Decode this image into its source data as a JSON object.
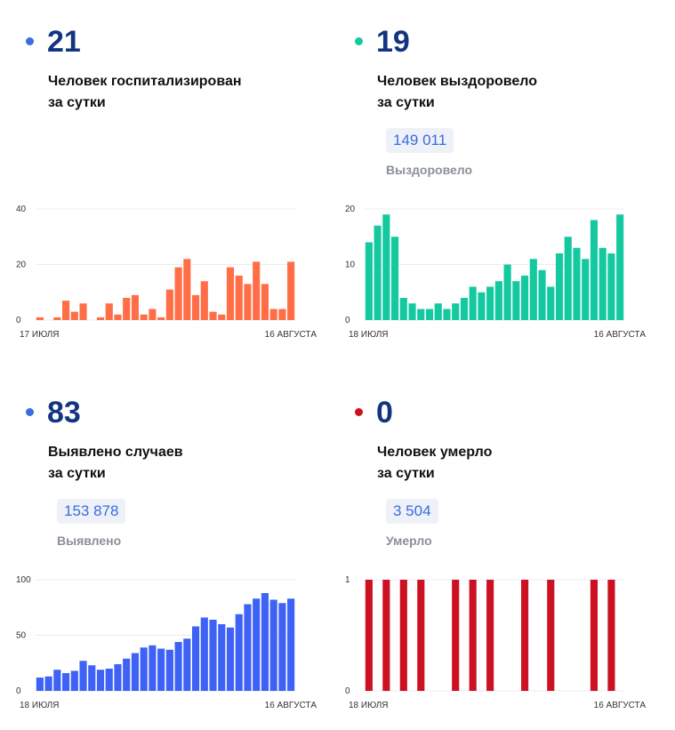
{
  "panels": [
    {
      "id": "hospitalized",
      "value": "21",
      "label_line1": "Человек госпитализирован",
      "label_line2": "за сутки",
      "dot_color": "#3a6be0",
      "total": null,
      "total_label": null
    },
    {
      "id": "recovered",
      "value": "19",
      "label_line1": "Человек выздоровело",
      "label_line2": "за сутки",
      "dot_color": "#14c9a0",
      "total": "149 011",
      "total_label": "Выздоровело"
    },
    {
      "id": "cases",
      "value": "83",
      "label_line1": "Выявлено случаев",
      "label_line2": "за сутки",
      "dot_color": "#3a6be0",
      "total": "153 878",
      "total_label": "Выявлено"
    },
    {
      "id": "deaths",
      "value": "0",
      "label_line1": "Человек умерло",
      "label_line2": "за сутки",
      "dot_color": "#cc1122",
      "total": "3 504",
      "total_label": "Умерло"
    }
  ],
  "chart_data": [
    {
      "type": "bar",
      "color": "#ff6e47",
      "x_start_label": "17 ИЮЛЯ",
      "x_end_label": "16 АВГУСТА",
      "yticks": [
        0,
        20,
        40
      ],
      "ylim": [
        0,
        40
      ],
      "values": [
        1,
        0,
        1,
        7,
        3,
        6,
        0,
        1,
        6,
        2,
        8,
        9,
        2,
        4,
        1,
        11,
        19,
        22,
        9,
        14,
        3,
        2,
        19,
        16,
        13,
        21,
        13,
        4,
        4,
        21
      ]
    },
    {
      "type": "bar",
      "color": "#14c9a0",
      "x_start_label": "18 ИЮЛЯ",
      "x_end_label": "16 АВГУСТА",
      "yticks": [
        0,
        10,
        20
      ],
      "ylim": [
        0,
        20
      ],
      "values": [
        14,
        17,
        19,
        15,
        4,
        3,
        2,
        2,
        3,
        2,
        3,
        4,
        6,
        5,
        6,
        7,
        10,
        7,
        8,
        11,
        9,
        6,
        12,
        15,
        13,
        11,
        18,
        13,
        12,
        19
      ]
    },
    {
      "type": "bar",
      "color": "#3d62f5",
      "x_start_label": "18 ИЮЛЯ",
      "x_end_label": "16 АВГУСТА",
      "yticks": [
        0,
        50,
        100
      ],
      "ylim": [
        0,
        100
      ],
      "values": [
        12,
        13,
        19,
        16,
        18,
        27,
        23,
        19,
        20,
        24,
        29,
        34,
        39,
        41,
        38,
        37,
        44,
        47,
        58,
        66,
        64,
        60,
        57,
        69,
        78,
        83,
        88,
        82,
        79,
        83
      ]
    },
    {
      "type": "bar",
      "color": "#cc1122",
      "x_start_label": "18 ИЮЛЯ",
      "x_end_label": "16 АВГУСТА",
      "yticks": [
        0,
        1
      ],
      "ylim": [
        0,
        1
      ],
      "values": [
        1,
        0,
        1,
        0,
        1,
        0,
        1,
        0,
        0,
        0,
        1,
        0,
        1,
        0,
        1,
        0,
        0,
        0,
        1,
        0,
        0,
        1,
        0,
        0,
        0,
        0,
        1,
        0,
        1,
        0
      ]
    }
  ]
}
